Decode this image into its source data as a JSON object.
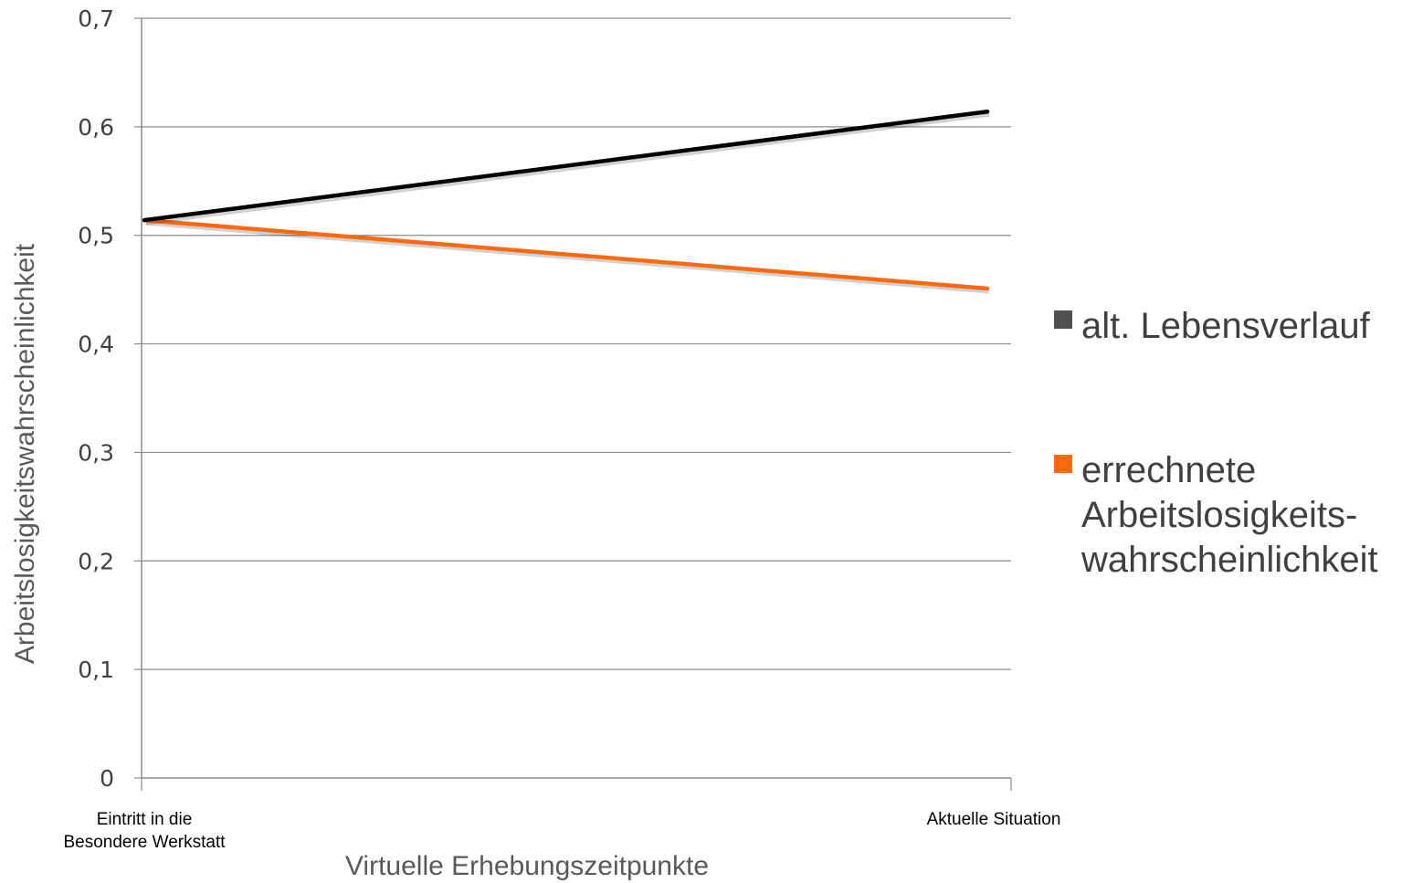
{
  "chart_data": {
    "type": "line",
    "title": "",
    "xlabel": "Virtuelle Erhebungszeitpunkte",
    "ylabel": "Arbeitslosigkeitswahrscheinlichkeit",
    "categories": [
      [
        "Eintritt in die",
        "Besondere Werkstatt"
      ],
      [
        "Aktuelle Situation"
      ]
    ],
    "ylim": [
      0,
      0.7
    ],
    "yticks": [
      0,
      0.1,
      0.2,
      0.3,
      0.4,
      0.5,
      0.6,
      0.7
    ],
    "ytick_labels": [
      "0",
      "0,1",
      "0,2",
      "0,3",
      "0,4",
      "0,5",
      "0,6",
      "0,7"
    ],
    "grid": true,
    "legend_position": "right",
    "series": [
      {
        "name": "alt. Lebensverlauf",
        "name_lines": [
          "alt. Lebensverlauf"
        ],
        "color": "#000000",
        "legend_color": "#505050",
        "values": [
          0.514,
          0.614
        ]
      },
      {
        "name": "errechnete Arbeitslosigkeitswahrscheinlichkeit",
        "name_lines": [
          "errechnete",
          "Arbeitslosigkeits-",
          "wahrscheinlichkeit"
        ],
        "color": "#ff6a10",
        "legend_color": "#ff6a10",
        "values": [
          0.514,
          0.451
        ]
      }
    ]
  }
}
